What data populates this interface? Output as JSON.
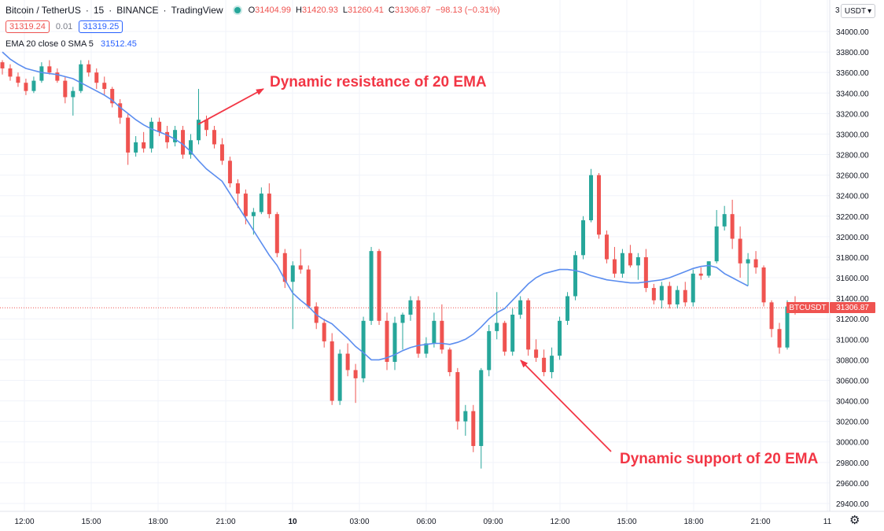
{
  "header": {
    "symbol": "Bitcoin / TetherUS",
    "interval": "15",
    "exchange": "BINANCE",
    "source": "TradingView",
    "ohlc": {
      "o": "31404.99",
      "h": "31420.93",
      "l": "31260.41",
      "c": "31306.87",
      "change": "−98.13 (−0.31%)"
    }
  },
  "price_row": {
    "sell": "31319.24",
    "spread": "0.01",
    "buy": "31319.25"
  },
  "indicator": {
    "label": "EMA 20 close 0 SMA 5",
    "value": "31512.45"
  },
  "currency": "USDT",
  "axis_partial": "3",
  "annotations": {
    "resistance": "Dynamic resistance of 20 EMA",
    "support": "Dynamic support of 20 EMA"
  },
  "last_price": {
    "symbol": "BTCUSDT",
    "price": "31306.87"
  },
  "colors": {
    "up": "#26a69a",
    "down": "#ef5350",
    "ema": "#5b8def",
    "annot": "#f23645",
    "grid": "#f0f3fa"
  },
  "chart_data": {
    "type": "candlestick",
    "ylim": [
      29300,
      34200
    ],
    "yticks": [
      "34000.00",
      "33800.00",
      "33600.00",
      "33400.00",
      "33200.00",
      "33000.00",
      "32800.00",
      "32600.00",
      "32400.00",
      "32200.00",
      "32000.00",
      "31800.00",
      "31600.00",
      "31400.00",
      "31200.00",
      "31000.00",
      "30800.00",
      "30600.00",
      "30400.00",
      "30200.00",
      "30000.00",
      "29800.00",
      "29600.00",
      "29400.00"
    ],
    "xticks": [
      "12:00",
      "15:00",
      "18:00",
      "21:00",
      "10",
      "03:00",
      "06:00",
      "09:00",
      "12:00",
      "15:00",
      "18:00",
      "21:00",
      "11"
    ],
    "bold_xticks": [
      4
    ],
    "last_price_line": 31306.87,
    "candles": [
      [
        33700,
        33720,
        33580,
        33640
      ],
      [
        33640,
        33680,
        33520,
        33560
      ],
      [
        33560,
        33600,
        33460,
        33500
      ],
      [
        33500,
        33540,
        33380,
        33420
      ],
      [
        33420,
        33560,
        33400,
        33520
      ],
      [
        33520,
        33700,
        33500,
        33660
      ],
      [
        33660,
        33720,
        33580,
        33600
      ],
      [
        33600,
        33640,
        33500,
        33520
      ],
      [
        33520,
        33560,
        33300,
        33360
      ],
      [
        33360,
        33460,
        33180,
        33420
      ],
      [
        33420,
        33720,
        33400,
        33680
      ],
      [
        33680,
        33720,
        33560,
        33600
      ],
      [
        33600,
        33640,
        33440,
        33500
      ],
      [
        33500,
        33560,
        33380,
        33440
      ],
      [
        33440,
        33460,
        33260,
        33300
      ],
      [
        33300,
        33340,
        33100,
        33160
      ],
      [
        33160,
        33200,
        32700,
        32820
      ],
      [
        32820,
        32980,
        32780,
        32920
      ],
      [
        32920,
        33020,
        32820,
        32860
      ],
      [
        32860,
        33160,
        32820,
        33120
      ],
      [
        33120,
        33160,
        32980,
        33020
      ],
      [
        33020,
        33080,
        32860,
        32920
      ],
      [
        32920,
        33080,
        32880,
        33040
      ],
      [
        33040,
        33080,
        32760,
        32800
      ],
      [
        32800,
        33000,
        32760,
        32940
      ],
      [
        32940,
        33440,
        32900,
        33140
      ],
      [
        33140,
        33180,
        32980,
        33040
      ],
      [
        33040,
        33080,
        32860,
        32900
      ],
      [
        32900,
        32960,
        32700,
        32740
      ],
      [
        32740,
        32780,
        32480,
        32520
      ],
      [
        32520,
        32560,
        32280,
        32420
      ],
      [
        32420,
        32460,
        32120,
        32200
      ],
      [
        32200,
        32280,
        32020,
        32240
      ],
      [
        32240,
        32480,
        32220,
        32420
      ],
      [
        32420,
        32520,
        32180,
        32220
      ],
      [
        32220,
        32240,
        31800,
        31840
      ],
      [
        31840,
        31880,
        31500,
        31560
      ],
      [
        31560,
        31760,
        31100,
        31720
      ],
      [
        31720,
        31880,
        31640,
        31680
      ],
      [
        31680,
        31720,
        31300,
        31320
      ],
      [
        31320,
        31360,
        31100,
        31160
      ],
      [
        31160,
        31200,
        30920,
        30980
      ],
      [
        30980,
        31060,
        30360,
        30400
      ],
      [
        30400,
        30900,
        30360,
        30860
      ],
      [
        30860,
        30960,
        30640,
        30700
      ],
      [
        30700,
        30760,
        30380,
        30620
      ],
      [
        30620,
        31220,
        30580,
        31180
      ],
      [
        31180,
        31900,
        31140,
        31860
      ],
      [
        31860,
        31880,
        31140,
        31180
      ],
      [
        31180,
        31260,
        30700,
        30780
      ],
      [
        30780,
        31220,
        30700,
        31160
      ],
      [
        31160,
        31260,
        30900,
        31240
      ],
      [
        31240,
        31420,
        31180,
        31380
      ],
      [
        31380,
        31420,
        30820,
        30860
      ],
      [
        30860,
        31020,
        30820,
        30960
      ],
      [
        30960,
        31260,
        30920,
        31180
      ],
      [
        31180,
        31340,
        30860,
        30900
      ],
      [
        30900,
        30920,
        30640,
        30680
      ],
      [
        30680,
        30720,
        30120,
        30200
      ],
      [
        30200,
        30360,
        30060,
        30300
      ],
      [
        30300,
        30360,
        29900,
        29960
      ],
      [
        29960,
        30720,
        29740,
        30700
      ],
      [
        30700,
        31140,
        30640,
        31080
      ],
      [
        31080,
        31460,
        31000,
        31160
      ],
      [
        31160,
        31180,
        30840,
        30880
      ],
      [
        30880,
        31300,
        30840,
        31240
      ],
      [
        31240,
        31420,
        31200,
        31380
      ],
      [
        31380,
        31400,
        30840,
        30900
      ],
      [
        30900,
        31000,
        30780,
        30820
      ],
      [
        30820,
        30900,
        30640,
        30680
      ],
      [
        30680,
        30920,
        30620,
        30840
      ],
      [
        30840,
        31220,
        30800,
        31180
      ],
      [
        31180,
        31460,
        31140,
        31420
      ],
      [
        31420,
        31860,
        31380,
        31820
      ],
      [
        31820,
        32200,
        31780,
        32160
      ],
      [
        32160,
        32660,
        32140,
        32600
      ],
      [
        32600,
        32620,
        31980,
        32020
      ],
      [
        32020,
        32060,
        31740,
        31780
      ],
      [
        31780,
        31900,
        31600,
        31640
      ],
      [
        31640,
        31880,
        31600,
        31840
      ],
      [
        31840,
        31920,
        31700,
        31720
      ],
      [
        31720,
        31840,
        31580,
        31800
      ],
      [
        31800,
        31880,
        31460,
        31500
      ],
      [
        31500,
        31540,
        31340,
        31380
      ],
      [
        31380,
        31560,
        31300,
        31520
      ],
      [
        31520,
        31560,
        31300,
        31340
      ],
      [
        31340,
        31520,
        31300,
        31480
      ],
      [
        31480,
        31560,
        31320,
        31360
      ],
      [
        31360,
        31680,
        31320,
        31640
      ],
      [
        31640,
        31700,
        31580,
        31620
      ],
      [
        31620,
        31760,
        31600,
        31760
      ],
      [
        31760,
        32260,
        31740,
        32100
      ],
      [
        32100,
        32300,
        32060,
        32220
      ],
      [
        32220,
        32360,
        31880,
        31980
      ],
      [
        31980,
        32100,
        31600,
        31740
      ],
      [
        31740,
        31840,
        31520,
        31780
      ],
      [
        31780,
        31860,
        31640,
        31700
      ],
      [
        31700,
        31720,
        31320,
        31360
      ],
      [
        31360,
        31380,
        31020,
        31100
      ],
      [
        31100,
        31160,
        30860,
        30920
      ],
      [
        30920,
        31380,
        30900,
        31320
      ],
      [
        31320,
        31420,
        31240,
        31300
      ]
    ],
    "ema": [
      33800,
      33730,
      33680,
      33640,
      33620,
      33600,
      33590,
      33580,
      33560,
      33540,
      33500,
      33460,
      33420,
      33380,
      33330,
      33260,
      33200,
      33140,
      33090,
      33050,
      33020,
      32990,
      32950,
      32900,
      32830,
      32740,
      32660,
      32600,
      32540,
      32420,
      32300,
      32180,
      32060,
      31940,
      31820,
      31720,
      31580,
      31450,
      31380,
      31320,
      31240,
      31190,
      31150,
      31080,
      31010,
      30930,
      30870,
      30800,
      30800,
      30820,
      30850,
      30890,
      30920,
      30940,
      30950,
      30960,
      30960,
      30950,
      30970,
      31000,
      31050,
      31120,
      31200,
      31260,
      31300,
      31380,
      31460,
      31540,
      31600,
      31640,
      31660,
      31680,
      31680,
      31670,
      31650,
      31620,
      31600,
      31580,
      31570,
      31560,
      31550,
      31550,
      31560,
      31570,
      31580,
      31600,
      31630,
      31660,
      31690,
      31710,
      31720,
      31700,
      31640,
      31600,
      31560,
      31520
    ]
  }
}
